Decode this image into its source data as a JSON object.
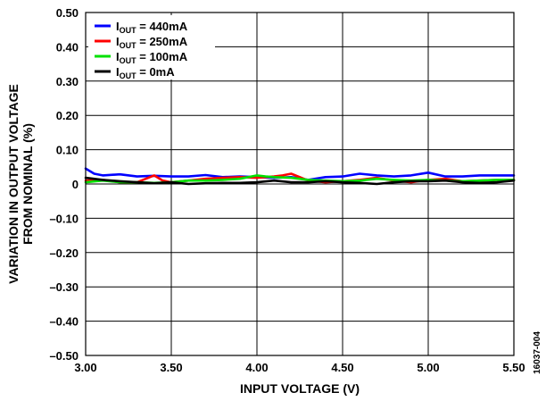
{
  "chart_data": {
    "type": "line",
    "xlabel": "INPUT VOLTAGE (V)",
    "ylabel_line1": "VARIATION IN OUTPUT VOLTAGE",
    "ylabel_line2": "FROM NOMINAL (%)",
    "xlim": [
      3.0,
      5.5
    ],
    "ylim": [
      -0.5,
      0.5
    ],
    "grid": true,
    "legend_position": "top-left",
    "figure_id": "16037-004",
    "x_ticks": [
      {
        "value": 3.0,
        "label": "3.00"
      },
      {
        "value": 3.5,
        "label": "3.50"
      },
      {
        "value": 4.0,
        "label": "4.00"
      },
      {
        "value": 4.5,
        "label": "4.50"
      },
      {
        "value": 5.0,
        "label": "5.00"
      },
      {
        "value": 5.5,
        "label": "5.50"
      }
    ],
    "y_ticks": [
      {
        "value": 0.5,
        "label": "0.50"
      },
      {
        "value": 0.4,
        "label": "0.40"
      },
      {
        "value": 0.3,
        "label": "0.30"
      },
      {
        "value": 0.2,
        "label": "0.20"
      },
      {
        "value": 0.1,
        "label": "0.10"
      },
      {
        "value": 0.0,
        "label": "0"
      },
      {
        "value": -0.1,
        "label": "–0.10"
      },
      {
        "value": -0.2,
        "label": "–0.20"
      },
      {
        "value": -0.3,
        "label": "–0.30"
      },
      {
        "value": -0.4,
        "label": "–0.40"
      },
      {
        "value": -0.5,
        "label": "–0.50"
      }
    ],
    "series": [
      {
        "name": "IOUT = 440mA",
        "legend_main": "I",
        "legend_sub": "OUT",
        "legend_rest": " = 440mA",
        "color": "#0000ff",
        "x": [
          3.0,
          3.05,
          3.1,
          3.2,
          3.3,
          3.4,
          3.5,
          3.6,
          3.7,
          3.8,
          3.9,
          4.0,
          4.1,
          4.2,
          4.3,
          4.4,
          4.5,
          4.6,
          4.7,
          4.8,
          4.9,
          5.0,
          5.1,
          5.2,
          5.3,
          5.4,
          5.5
        ],
        "y": [
          0.045,
          0.03,
          0.025,
          0.028,
          0.022,
          0.024,
          0.022,
          0.022,
          0.026,
          0.02,
          0.022,
          0.02,
          0.018,
          0.02,
          0.012,
          0.02,
          0.022,
          0.03,
          0.025,
          0.022,
          0.025,
          0.033,
          0.022,
          0.022,
          0.025,
          0.025,
          0.025
        ]
      },
      {
        "name": "IOUT = 250mA",
        "legend_main": "I",
        "legend_sub": "OUT",
        "legend_rest": " = 250mA",
        "color": "#ff0000",
        "x": [
          3.0,
          3.1,
          3.2,
          3.3,
          3.4,
          3.45,
          3.5,
          3.6,
          3.7,
          3.8,
          3.9,
          4.0,
          4.1,
          4.15,
          4.2,
          4.3,
          4.4,
          4.5,
          4.6,
          4.7,
          4.8,
          4.9,
          5.0,
          5.1,
          5.2,
          5.3,
          5.4,
          5.5
        ],
        "y": [
          0.01,
          0.012,
          0.005,
          0.005,
          0.025,
          0.01,
          0.005,
          0.01,
          0.015,
          0.018,
          0.02,
          0.018,
          0.022,
          0.025,
          0.03,
          0.01,
          0.005,
          0.008,
          0.012,
          0.018,
          0.01,
          0.005,
          0.012,
          0.015,
          0.008,
          0.01,
          0.012,
          0.012
        ]
      },
      {
        "name": "IOUT = 100mA",
        "legend_main": "I",
        "legend_sub": "OUT",
        "legend_rest": " = 100mA",
        "color": "#00e000",
        "x": [
          3.0,
          3.1,
          3.2,
          3.3,
          3.4,
          3.5,
          3.6,
          3.7,
          3.8,
          3.9,
          4.0,
          4.05,
          4.1,
          4.2,
          4.3,
          4.4,
          4.5,
          4.6,
          4.7,
          4.8,
          4.9,
          5.0,
          5.1,
          5.2,
          5.3,
          5.4,
          5.5
        ],
        "y": [
          0.005,
          0.01,
          0.005,
          0.005,
          0.003,
          0.005,
          0.01,
          0.01,
          0.012,
          0.015,
          0.025,
          0.022,
          0.02,
          0.018,
          0.012,
          0.01,
          0.008,
          0.01,
          0.015,
          0.012,
          0.01,
          0.012,
          0.01,
          0.008,
          0.01,
          0.012,
          0.012
        ]
      },
      {
        "name": "IOUT = 0mA",
        "legend_main": "I",
        "legend_sub": "OUT",
        "legend_rest": " = 0mA",
        "color": "#000000",
        "x": [
          3.0,
          3.1,
          3.2,
          3.3,
          3.4,
          3.5,
          3.6,
          3.7,
          3.8,
          3.9,
          4.0,
          4.1,
          4.2,
          4.3,
          4.4,
          4.5,
          4.6,
          4.7,
          4.8,
          4.9,
          5.0,
          5.1,
          5.2,
          5.3,
          5.4,
          5.5
        ],
        "y": [
          0.018,
          0.012,
          0.008,
          0.005,
          0.002,
          0.005,
          0.0,
          0.002,
          0.003,
          0.003,
          0.005,
          0.01,
          0.005,
          0.005,
          0.008,
          0.005,
          0.003,
          0.0,
          0.005,
          0.008,
          0.008,
          0.01,
          0.005,
          0.003,
          0.005,
          0.01
        ]
      }
    ]
  }
}
